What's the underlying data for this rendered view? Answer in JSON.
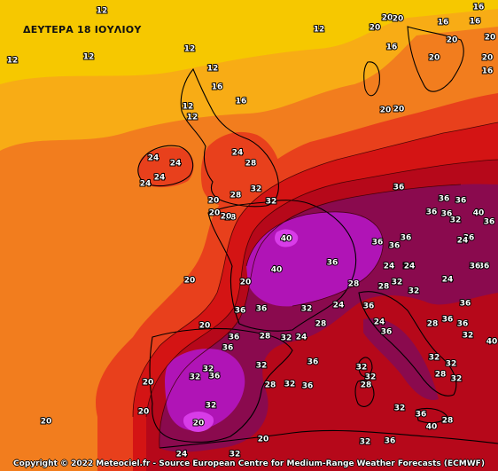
{
  "map": {
    "title": "ΔΕΥΤΕΡΑ 18 ΙΟΥΛΙΟΥ",
    "credit": "Copyright © 2022 Meteociel.fr - Source European Centre for Medium-Range Weather Forecasts (ECMWF)",
    "palette": {
      "t12": "#f6c800",
      "t16": "#f8ac15",
      "t20": "#f27d1e",
      "t24": "#e8401c",
      "t28": "#d41414",
      "t32": "#b6081a",
      "t36": "#8a0a4e",
      "t40": "#b014b6",
      "t44": "#d83ce8",
      "contour": "#3a0000",
      "coast": "#000000"
    },
    "labels": [
      {
        "text": "12"
      },
      {
        "text": "12"
      },
      {
        "text": "12"
      },
      {
        "text": "12"
      },
      {
        "text": "12"
      },
      {
        "text": "12"
      },
      {
        "text": "12"
      },
      {
        "text": "12"
      },
      {
        "text": "16"
      },
      {
        "text": "16"
      },
      {
        "text": "16"
      },
      {
        "text": "16"
      },
      {
        "text": "16"
      },
      {
        "text": "20"
      },
      {
        "text": "20"
      },
      {
        "text": "20"
      },
      {
        "text": "20"
      },
      {
        "text": "20"
      },
      {
        "text": "16"
      },
      {
        "text": "20"
      },
      {
        "text": "20"
      },
      {
        "text": "16"
      },
      {
        "text": "20"
      },
      {
        "text": "20"
      },
      {
        "text": "24"
      },
      {
        "text": "24"
      },
      {
        "text": "24"
      },
      {
        "text": "24"
      },
      {
        "text": "24"
      },
      {
        "text": "28"
      },
      {
        "text": "28"
      },
      {
        "text": "32"
      },
      {
        "text": "32"
      },
      {
        "text": "20"
      },
      {
        "text": "28"
      },
      {
        "text": "20"
      },
      {
        "text": "20"
      },
      {
        "text": "20"
      },
      {
        "text": "40"
      },
      {
        "text": "40"
      },
      {
        "text": "36"
      },
      {
        "text": "36"
      },
      {
        "text": "36"
      },
      {
        "text": "36"
      },
      {
        "text": "36"
      },
      {
        "text": "40"
      },
      {
        "text": "36"
      },
      {
        "text": "36"
      },
      {
        "text": "36"
      },
      {
        "text": "36"
      },
      {
        "text": "36"
      },
      {
        "text": "36"
      },
      {
        "text": "36"
      },
      {
        "text": "32"
      },
      {
        "text": "24"
      },
      {
        "text": "24"
      },
      {
        "text": "28"
      },
      {
        "text": "32"
      },
      {
        "text": "28"
      },
      {
        "text": "32"
      },
      {
        "text": "24"
      },
      {
        "text": "36"
      },
      {
        "text": "36"
      },
      {
        "text": "32"
      },
      {
        "text": "28"
      },
      {
        "text": "32"
      },
      {
        "text": "24"
      },
      {
        "text": "28"
      },
      {
        "text": "36"
      },
      {
        "text": "36"
      },
      {
        "text": "32"
      },
      {
        "text": "32"
      },
      {
        "text": "36"
      },
      {
        "text": "32"
      },
      {
        "text": "36"
      },
      {
        "text": "32"
      },
      {
        "text": "36"
      },
      {
        "text": "28"
      },
      {
        "text": "32"
      },
      {
        "text": "28"
      },
      {
        "text": "32"
      },
      {
        "text": "32"
      },
      {
        "text": "32"
      },
      {
        "text": "28"
      },
      {
        "text": "32"
      },
      {
        "text": "36"
      },
      {
        "text": "36"
      },
      {
        "text": "32"
      },
      {
        "text": "40"
      },
      {
        "text": "32"
      },
      {
        "text": "20"
      },
      {
        "text": "20"
      },
      {
        "text": "20"
      },
      {
        "text": "20"
      },
      {
        "text": "20"
      },
      {
        "text": "20"
      },
      {
        "text": "24"
      },
      {
        "text": "24"
      },
      {
        "text": "24"
      },
      {
        "text": "36"
      },
      {
        "text": "36"
      },
      {
        "text": "36"
      },
      {
        "text": "24"
      },
      {
        "text": "28"
      },
      {
        "text": "36"
      },
      {
        "text": "32"
      },
      {
        "text": "36"
      },
      {
        "text": "40"
      },
      {
        "text": "36"
      },
      {
        "text": "32"
      },
      {
        "text": "28"
      },
      {
        "text": "20"
      },
      {
        "text": "32"
      },
      {
        "text": "24"
      },
      {
        "text": "24"
      },
      {
        "text": "24"
      }
    ]
  }
}
